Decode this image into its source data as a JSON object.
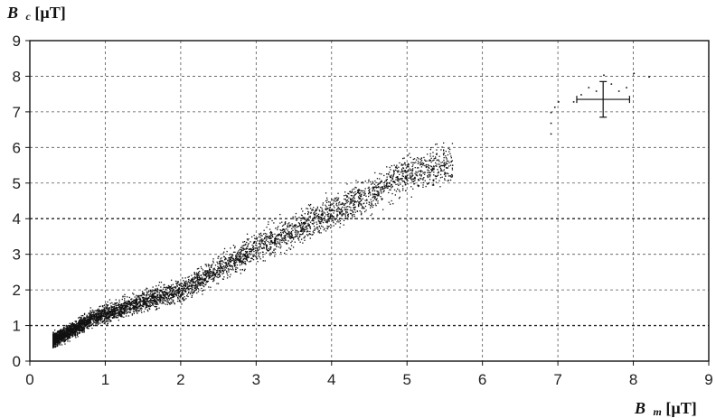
{
  "chart_data": {
    "type": "scatter",
    "title": "",
    "xlabel": {
      "symbol": "B",
      "subscript": "m",
      "unit": " [µT]"
    },
    "ylabel": {
      "symbol": "B",
      "subscript": "c",
      "unit": " [µT]"
    },
    "xlim": [
      0,
      9
    ],
    "ylim": [
      0,
      9
    ],
    "x_ticks": [
      "0",
      "1",
      "2",
      "3",
      "4",
      "5",
      "6",
      "7",
      "8",
      "9"
    ],
    "y_ticks": [
      "0",
      "1",
      "2",
      "3",
      "4",
      "5",
      "6",
      "7",
      "8",
      "9"
    ],
    "grid": true,
    "grid_style": "dashed",
    "emphasized_gridlines_y": [
      1,
      4
    ],
    "marker_color": "#111111",
    "trend_description_points": [
      [
        0.3,
        0.6
      ],
      [
        0.5,
        0.8
      ],
      [
        0.8,
        1.2
      ],
      [
        1.0,
        1.35
      ],
      [
        1.5,
        1.7
      ],
      [
        2.0,
        2.0
      ],
      [
        2.5,
        2.6
      ],
      [
        3.0,
        3.2
      ],
      [
        3.5,
        3.7
      ],
      [
        4.0,
        4.2
      ],
      [
        4.5,
        4.7
      ],
      [
        5.0,
        5.3
      ],
      [
        5.5,
        5.5
      ]
    ],
    "outlier_points": [
      [
        6.9,
        6.4
      ],
      [
        6.9,
        6.7
      ],
      [
        6.9,
        7.0
      ],
      [
        6.95,
        7.15
      ],
      [
        7.0,
        7.3
      ],
      [
        7.2,
        7.3
      ],
      [
        7.3,
        7.5
      ],
      [
        7.4,
        7.7
      ],
      [
        7.5,
        7.6
      ],
      [
        7.7,
        7.8
      ],
      [
        7.8,
        7.6
      ],
      [
        7.9,
        7.7
      ],
      [
        8.0,
        8.1
      ],
      [
        8.2,
        8.0
      ],
      [
        7.6,
        8.05
      ]
    ],
    "error_bar": {
      "x": 7.6,
      "y": 7.35,
      "x_err": 0.35,
      "y_err": 0.5
    }
  }
}
